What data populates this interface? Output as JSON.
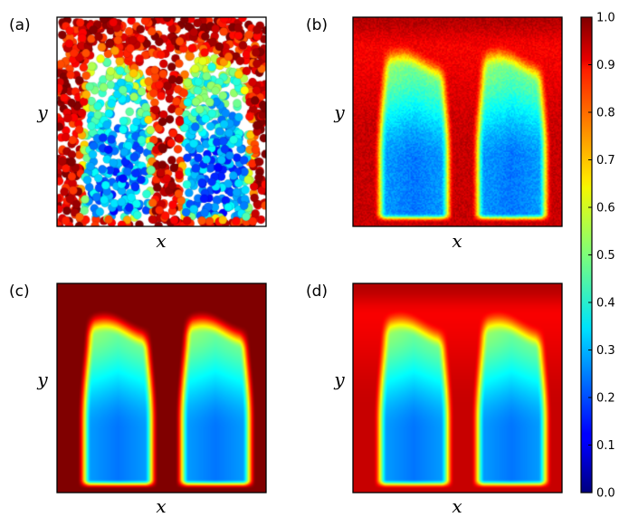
{
  "chart_data": [
    {
      "type": "heatmap",
      "panel": "(a)",
      "xlabel": "x",
      "ylabel": "y",
      "render": "particles",
      "ticks_shown": false
    },
    {
      "type": "heatmap",
      "panel": "(b)",
      "xlabel": "x",
      "ylabel": "y",
      "render": "noisy-field",
      "ticks_shown": false
    },
    {
      "type": "heatmap",
      "panel": "(c)",
      "xlabel": "x",
      "ylabel": "y",
      "render": "smooth-field-saturated-sides",
      "ticks_shown": false
    },
    {
      "type": "heatmap",
      "panel": "(d)",
      "xlabel": "x",
      "ylabel": "y",
      "render": "smooth-field",
      "ticks_shown": false
    }
  ],
  "colorbar": {
    "colormap": "jet",
    "range": [
      0.0,
      1.0
    ],
    "ticks": [
      "0.0",
      "0.1",
      "0.2",
      "0.3",
      "0.4",
      "0.5",
      "0.6",
      "0.7",
      "0.8",
      "0.9",
      "1.0"
    ]
  }
}
